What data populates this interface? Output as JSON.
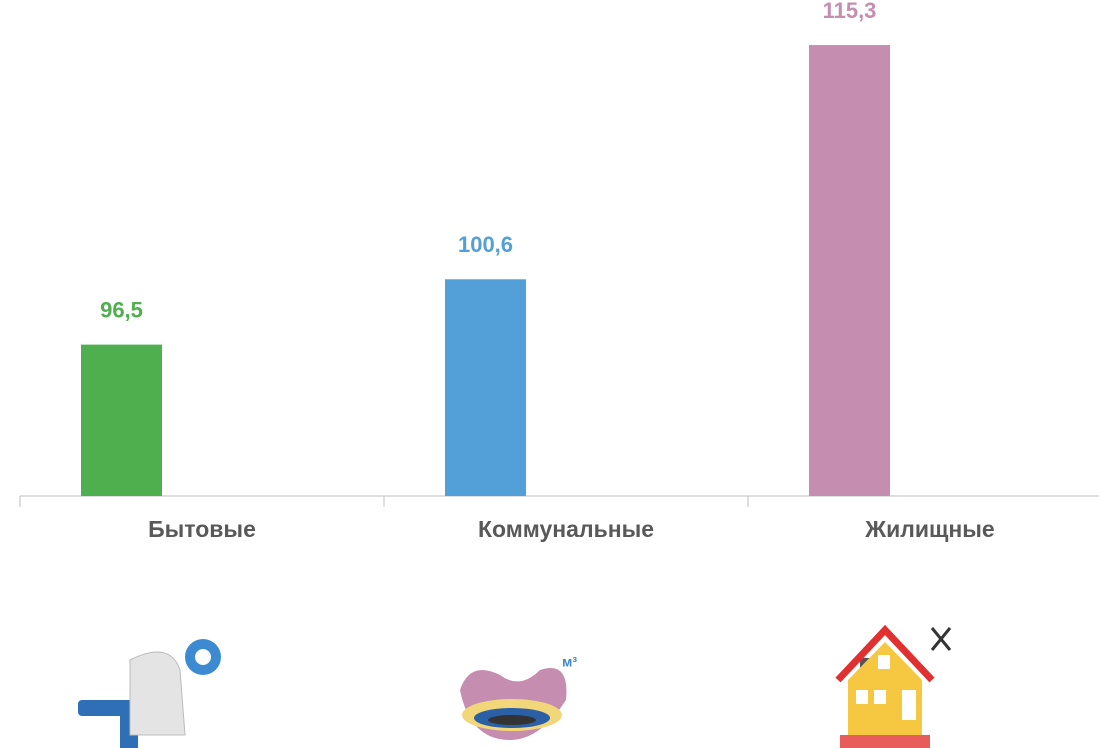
{
  "chart_data": {
    "type": "bar",
    "categories": [
      "Бытовые",
      "Коммунальные",
      "Жилищные"
    ],
    "values": [
      96.5,
      100.6,
      115.3
    ],
    "value_labels": [
      "96,5",
      "100,6",
      "115,3"
    ],
    "colors": [
      "#4fae4e",
      "#539fd8",
      "#c58db0"
    ],
    "ylim": [
      87,
      118
    ]
  }
}
